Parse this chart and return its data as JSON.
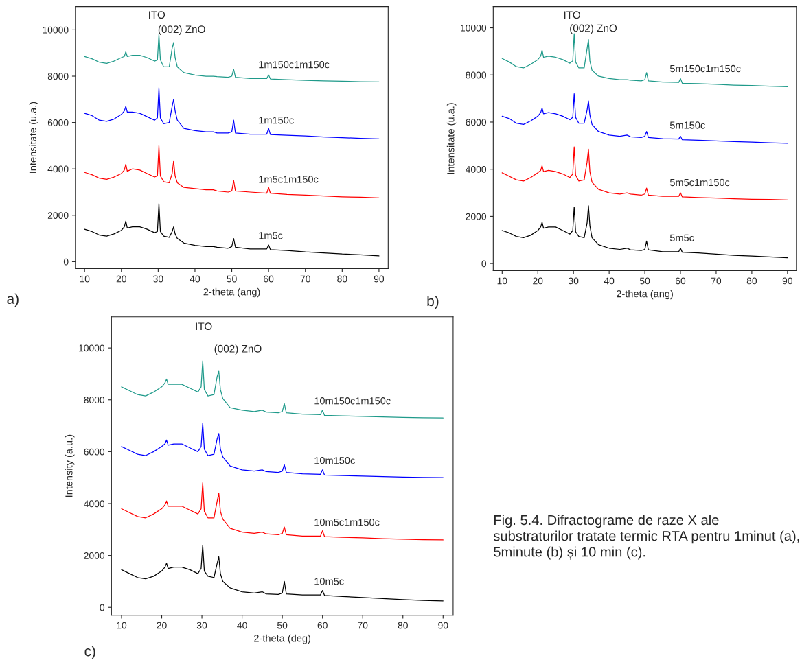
{
  "chart_data": [
    {
      "type": "line",
      "xlabel": "2-theta (ang)",
      "ylabel": "Intensitate (u.a.)",
      "xlim": [
        7.5,
        92.5
      ],
      "ylim": [
        -300,
        11000
      ],
      "xticks": [
        10,
        20,
        30,
        40,
        50,
        60,
        70,
        80,
        90
      ],
      "yticks": [
        0,
        2000,
        4000,
        6000,
        8000,
        10000
      ],
      "grid": false,
      "legend": false,
      "x": [
        10,
        12,
        14,
        16,
        18,
        20,
        20.8,
        21.2,
        21.6,
        23,
        25,
        27,
        29,
        29.8,
        30.2,
        30.6,
        31.5,
        33,
        33.8,
        34.2,
        34.6,
        35.2,
        37,
        40,
        43,
        45,
        46,
        49,
        50,
        50.5,
        51,
        55,
        59.5,
        60,
        60.5,
        65,
        70,
        75,
        80,
        85,
        90
      ],
      "series": [
        {
          "name": "1m5c",
          "color": "#000000",
          "values": [
            1400,
            1300,
            1150,
            1100,
            1200,
            1350,
            1500,
            1750,
            1450,
            1500,
            1500,
            1400,
            1250,
            1300,
            2500,
            1300,
            1100,
            1050,
            1300,
            1500,
            1200,
            1000,
            800,
            700,
            650,
            650,
            620,
            580,
            650,
            1000,
            620,
            550,
            550,
            720,
            520,
            480,
            420,
            380,
            330,
            300,
            250
          ]
        },
        {
          "name": "1m5c1m150c",
          "color": "#ff0000",
          "values": [
            3850,
            3750,
            3600,
            3550,
            3650,
            3800,
            3950,
            4200,
            3900,
            4000,
            3950,
            3800,
            3650,
            3700,
            5000,
            3700,
            3450,
            3400,
            3800,
            4350,
            3700,
            3400,
            3200,
            3150,
            3100,
            3100,
            3050,
            3000,
            3050,
            3500,
            3050,
            3000,
            2950,
            3200,
            2950,
            2900,
            2870,
            2830,
            2800,
            2780,
            2750
          ]
        },
        {
          "name": "1m150c",
          "color": "#0000ff",
          "values": [
            6400,
            6300,
            6100,
            6050,
            6150,
            6350,
            6500,
            6700,
            6450,
            6450,
            6400,
            6250,
            6100,
            6200,
            7500,
            6200,
            5950,
            6000,
            6700,
            7000,
            6500,
            6100,
            5750,
            5650,
            5600,
            5600,
            5550,
            5550,
            5600,
            6100,
            5550,
            5500,
            5500,
            5750,
            5480,
            5450,
            5420,
            5380,
            5350,
            5320,
            5300
          ]
        },
        {
          "name": "1m150c1m150c",
          "color": "#1f9a8a",
          "values": [
            8850,
            8750,
            8600,
            8550,
            8650,
            8800,
            8850,
            9050,
            8850,
            8900,
            8900,
            8800,
            8650,
            8700,
            9800,
            8700,
            8400,
            8400,
            9200,
            9450,
            8800,
            8400,
            8150,
            8050,
            8000,
            8000,
            7980,
            7950,
            8000,
            8300,
            7950,
            7900,
            7900,
            8050,
            7880,
            7850,
            7820,
            7800,
            7780,
            7760,
            7750
          ]
        }
      ],
      "annotations": [
        "ITO",
        "(002) ZnO",
        "a)"
      ]
    },
    {
      "type": "line",
      "xlabel": "2-theta (ang)",
      "ylabel": "Intensitate (u.a.)",
      "xlim": [
        7.5,
        92.5
      ],
      "ylim": [
        -300,
        10900
      ],
      "xticks": [
        10,
        20,
        30,
        40,
        50,
        60,
        70,
        80,
        90
      ],
      "yticks": [
        0,
        2000,
        4000,
        6000,
        8000,
        10000
      ],
      "grid": false,
      "legend": false,
      "x": [
        10,
        12,
        14,
        16,
        18,
        20,
        20.8,
        21.2,
        21.6,
        23,
        25,
        27,
        29,
        29.8,
        30.2,
        30.6,
        31.5,
        33,
        33.8,
        34.2,
        34.6,
        35.2,
        37,
        40,
        43,
        45,
        46,
        49,
        50,
        50.5,
        51,
        55,
        59.5,
        60,
        60.5,
        65,
        70,
        75,
        80,
        85,
        90
      ],
      "series": [
        {
          "name": "5m5c",
          "color": "#000000",
          "values": [
            1400,
            1300,
            1150,
            1100,
            1200,
            1400,
            1550,
            1750,
            1500,
            1550,
            1550,
            1400,
            1250,
            1400,
            2400,
            1350,
            1150,
            1100,
            1700,
            2450,
            1600,
            1100,
            800,
            650,
            600,
            650,
            580,
            550,
            600,
            950,
            580,
            500,
            500,
            650,
            480,
            450,
            400,
            350,
            320,
            280,
            250
          ]
        },
        {
          "name": "5m5c1m150c",
          "color": "#ff0000",
          "values": [
            3850,
            3700,
            3550,
            3500,
            3650,
            3850,
            3950,
            4150,
            3900,
            3950,
            3900,
            3800,
            3650,
            3800,
            4950,
            3750,
            3500,
            3550,
            4300,
            4850,
            3900,
            3450,
            3150,
            3000,
            2950,
            3000,
            2950,
            2900,
            2950,
            3200,
            2900,
            2850,
            2850,
            3000,
            2830,
            2800,
            2780,
            2750,
            2730,
            2720,
            2700
          ]
        },
        {
          "name": "5m150c",
          "color": "#0000ff",
          "values": [
            6250,
            6150,
            5950,
            5900,
            6050,
            6250,
            6400,
            6600,
            6350,
            6400,
            6350,
            6250,
            6100,
            6200,
            7200,
            6200,
            5950,
            5950,
            6500,
            6900,
            6300,
            5900,
            5600,
            5450,
            5400,
            5450,
            5380,
            5350,
            5400,
            5600,
            5350,
            5300,
            5280,
            5400,
            5250,
            5230,
            5200,
            5170,
            5150,
            5120,
            5100
          ]
        },
        {
          "name": "5m150c1m150c",
          "color": "#1f9a8a",
          "values": [
            8700,
            8550,
            8350,
            8300,
            8450,
            8650,
            8800,
            9050,
            8750,
            8800,
            8750,
            8650,
            8500,
            8600,
            9750,
            8550,
            8300,
            8300,
            9100,
            9500,
            8600,
            8200,
            7950,
            7850,
            7800,
            7800,
            7780,
            7750,
            7800,
            8100,
            7750,
            7700,
            7680,
            7850,
            7650,
            7630,
            7600,
            7570,
            7550,
            7520,
            7500
          ]
        }
      ],
      "annotations": [
        "ITO",
        "(002) ZnO",
        "b)"
      ]
    },
    {
      "type": "line",
      "xlabel": "2-theta (deg)",
      "ylabel": "Intensity (a.u.)",
      "xlim": [
        7.5,
        92.5
      ],
      "ylim": [
        -300,
        11200
      ],
      "xticks": [
        10,
        20,
        30,
        40,
        50,
        60,
        70,
        80,
        90
      ],
      "yticks": [
        0,
        2000,
        4000,
        6000,
        8000,
        10000
      ],
      "grid": false,
      "legend": false,
      "x": [
        10,
        12,
        14,
        16,
        18,
        20,
        20.8,
        21.2,
        21.6,
        23,
        25,
        27,
        29,
        29.8,
        30.2,
        30.6,
        31.5,
        33,
        33.8,
        34.2,
        34.6,
        35.2,
        37,
        40,
        43,
        45,
        46,
        49,
        50,
        50.5,
        51,
        55,
        59.5,
        60,
        60.5,
        65,
        70,
        75,
        80,
        85,
        90
      ],
      "series": [
        {
          "name": "10m5c",
          "color": "#000000",
          "values": [
            1450,
            1300,
            1150,
            1100,
            1200,
            1400,
            1550,
            1700,
            1500,
            1550,
            1550,
            1450,
            1300,
            1500,
            2400,
            1400,
            1200,
            1150,
            1700,
            1950,
            1300,
            1000,
            750,
            600,
            550,
            600,
            520,
            500,
            550,
            1000,
            520,
            480,
            480,
            650,
            460,
            420,
            380,
            340,
            300,
            270,
            250
          ]
        },
        {
          "name": "10m5c1m150c",
          "color": "#ff0000",
          "values": [
            3800,
            3650,
            3500,
            3450,
            3600,
            3800,
            3950,
            4100,
            3900,
            3900,
            3900,
            3750,
            3600,
            3800,
            4800,
            3700,
            3450,
            3450,
            4100,
            4400,
            3700,
            3400,
            3050,
            2900,
            2850,
            2900,
            2830,
            2800,
            2850,
            3100,
            2800,
            2750,
            2750,
            2950,
            2730,
            2700,
            2680,
            2650,
            2630,
            2610,
            2600
          ]
        },
        {
          "name": "10m150c",
          "color": "#0000ff",
          "values": [
            6200,
            6050,
            5900,
            5850,
            6000,
            6200,
            6300,
            6450,
            6250,
            6300,
            6300,
            6150,
            6000,
            6200,
            7100,
            6100,
            5850,
            5900,
            6500,
            6700,
            6100,
            5800,
            5450,
            5300,
            5250,
            5300,
            5230,
            5200,
            5250,
            5500,
            5200,
            5150,
            5130,
            5300,
            5100,
            5080,
            5060,
            5040,
            5020,
            5010,
            5000
          ]
        },
        {
          "name": "10m150c1m150c",
          "color": "#1f9a8a",
          "values": [
            8500,
            8350,
            8200,
            8150,
            8300,
            8500,
            8650,
            8800,
            8600,
            8600,
            8600,
            8450,
            8300,
            8500,
            9500,
            8400,
            8150,
            8200,
            8900,
            9100,
            8400,
            8050,
            7700,
            7600,
            7550,
            7600,
            7530,
            7500,
            7550,
            7850,
            7500,
            7450,
            7430,
            7600,
            7400,
            7380,
            7360,
            7340,
            7320,
            7310,
            7300
          ]
        }
      ],
      "annotations": [
        "ITO",
        "(002) ZnO",
        "c)",
        "Fig. 5.4. Difractograme de raze X ale substraturilor tratate termic RTA pentru 1minut (a), 5minute (b) și 10 min (c)."
      ]
    }
  ]
}
